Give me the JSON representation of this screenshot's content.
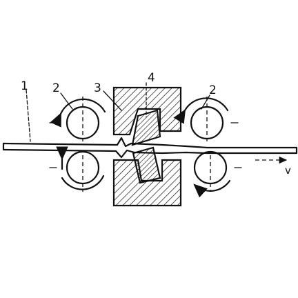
{
  "labels": {
    "sheet": "1",
    "roller_left": "2",
    "roller_right": "2",
    "die_insert": "3",
    "punch": "4",
    "velocity": "v"
  }
}
